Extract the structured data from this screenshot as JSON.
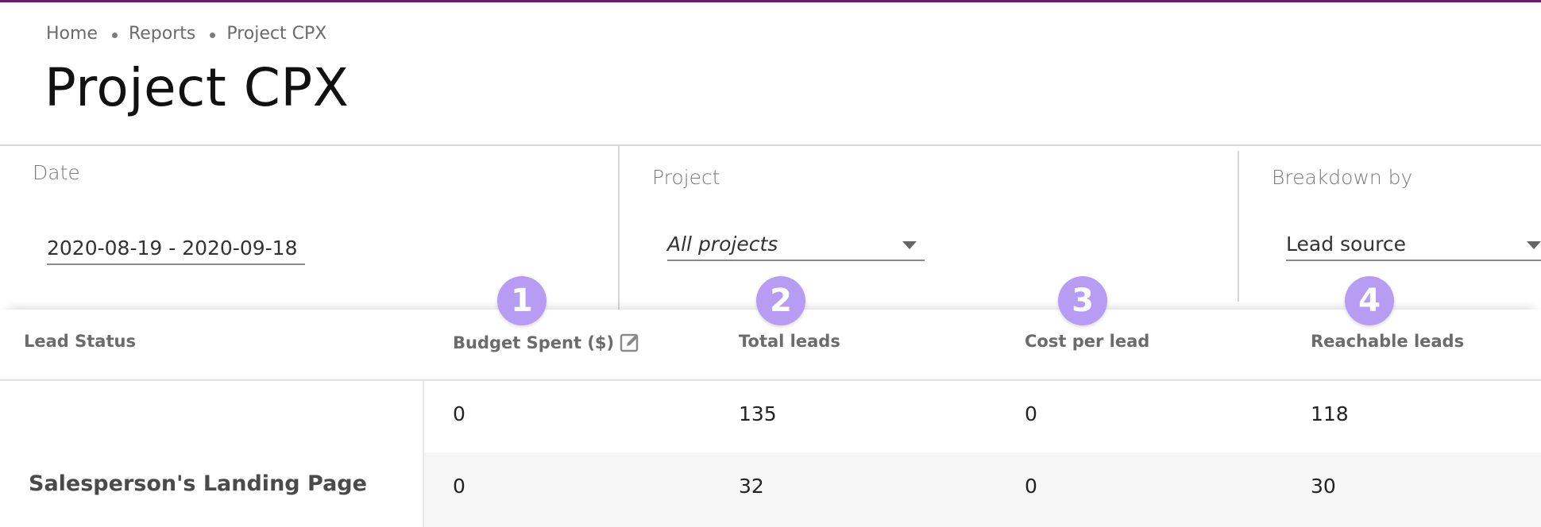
{
  "breadcrumb": [
    "Home",
    "Reports",
    "Project CPX"
  ],
  "page_title": "Project CPX",
  "filters": {
    "date": {
      "label": "Date",
      "value": "2020-08-19 - 2020-09-18"
    },
    "project": {
      "label": "Project",
      "value": "All projects"
    },
    "breakdown": {
      "label": "Breakdown by",
      "value": "Lead source"
    }
  },
  "table": {
    "columns": [
      "Lead Status",
      "Budget Spent ($)",
      "Total leads",
      "Cost per lead",
      "Reachable leads"
    ],
    "rows": [
      [
        "0",
        "135",
        "0",
        "118"
      ],
      [
        "0",
        "32",
        "0",
        "30"
      ]
    ],
    "row_label": "Salesperson's Landing Page"
  },
  "badges": [
    "1",
    "2",
    "3",
    "4"
  ],
  "colors": {
    "accent_bar": "#6a1b6e",
    "badge": "#b69cf2"
  },
  "icons": {
    "edit": "edit-icon",
    "dropdown": "caret-down-icon"
  }
}
